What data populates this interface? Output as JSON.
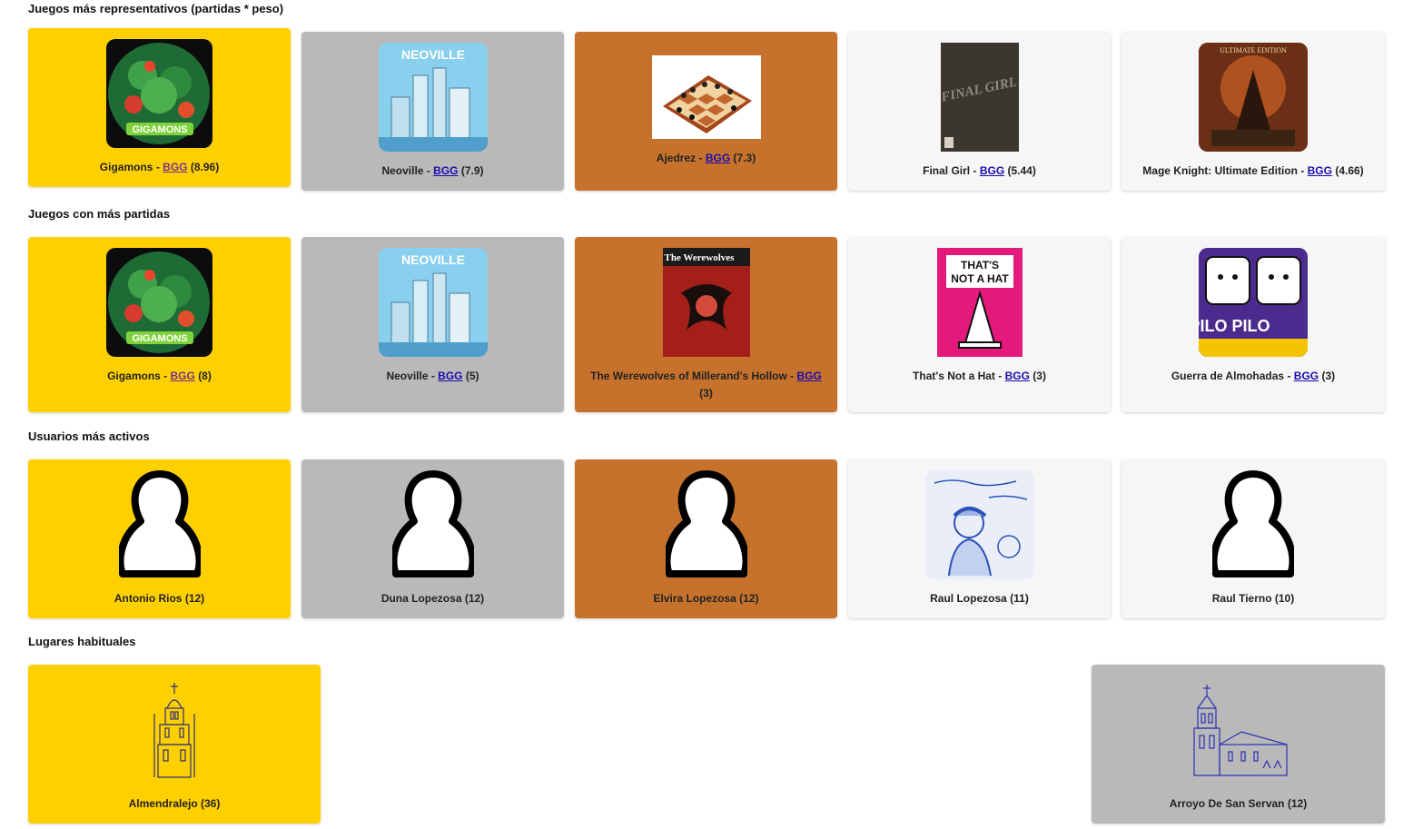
{
  "sections": {
    "representative": {
      "title": "Juegos más representativos (partidas * peso)",
      "items": [
        {
          "name": "Gigamons",
          "sep": " - ",
          "link": "BGG",
          "score": "(8.96)",
          "art": "gigamons-box-art"
        },
        {
          "name": "Neoville",
          "sep": " - ",
          "link": "BGG",
          "score": "(7.9)",
          "art": "neoville-box-art",
          "box_text": "NEOVILLE"
        },
        {
          "name": "Ajedrez",
          "sep": " - ",
          "link": "BGG",
          "score": "(7.3)",
          "art": "chess-board-art"
        },
        {
          "name": "Final Girl",
          "sep": " - ",
          "link": "BGG",
          "score": "(5.44)",
          "art": "final-girl-box-art",
          "box_text": "FINAL GIRL"
        },
        {
          "name": "Mage Knight: Ultimate Edition",
          "sep": " - ",
          "link": "BGG",
          "score": "(4.66)",
          "art": "mage-knight-box-art",
          "box_text": "ULTIMATE EDITION"
        }
      ]
    },
    "most_played": {
      "title": "Juegos con más partidas",
      "items": [
        {
          "name": "Gigamons",
          "sep": " - ",
          "link": "BGG",
          "score": "(8)",
          "art": "gigamons-box-art"
        },
        {
          "name": "Neoville",
          "sep": " - ",
          "link": "BGG",
          "score": "(5)",
          "art": "neoville-box-art",
          "box_text": "NEOVILLE"
        },
        {
          "name": "The Werewolves of Millerand's Hollow",
          "sep": " - ",
          "link": "BGG",
          "score": "(3)",
          "art": "werewolves-box-art",
          "box_text": "The Werewolves"
        },
        {
          "name": "That's Not a Hat",
          "sep": " - ",
          "link": "BGG",
          "score": "(3)",
          "art": "thats-not-a-hat-box-art",
          "box_text": "THAT'S NOT A HAT"
        },
        {
          "name": "Guerra de Almohadas",
          "sep": " - ",
          "link": "BGG",
          "score": "(3)",
          "art": "pilo-pilo-box-art",
          "box_text": "PILO PILO"
        }
      ]
    },
    "active_users": {
      "title": "Usuarios más activos",
      "items": [
        {
          "name": "Antonio Rios (12)",
          "icon": "user-placeholder-icon"
        },
        {
          "name": "Duna Lopezosa (12)",
          "icon": "user-placeholder-icon"
        },
        {
          "name": "Elvira Lopezosa (12)",
          "icon": "user-placeholder-icon"
        },
        {
          "name": "Raul Lopezosa (11)",
          "icon": "user-sketch-avatar"
        },
        {
          "name": "Raul Tierno (10)",
          "icon": "user-placeholder-icon"
        }
      ]
    },
    "places": {
      "title": "Lugares habituales",
      "items": [
        {
          "name": "Almendralejo (36)",
          "icon": "church-tower-icon"
        },
        {
          "name": "Arroyo De San Servan (12)",
          "icon": "church-building-icon"
        }
      ]
    }
  },
  "colors": {
    "gold": "#ffd000",
    "silver": "#b9b9b9",
    "bronze": "#c6722c",
    "plain": "#f6f6f6",
    "link": "#1a0dab"
  }
}
